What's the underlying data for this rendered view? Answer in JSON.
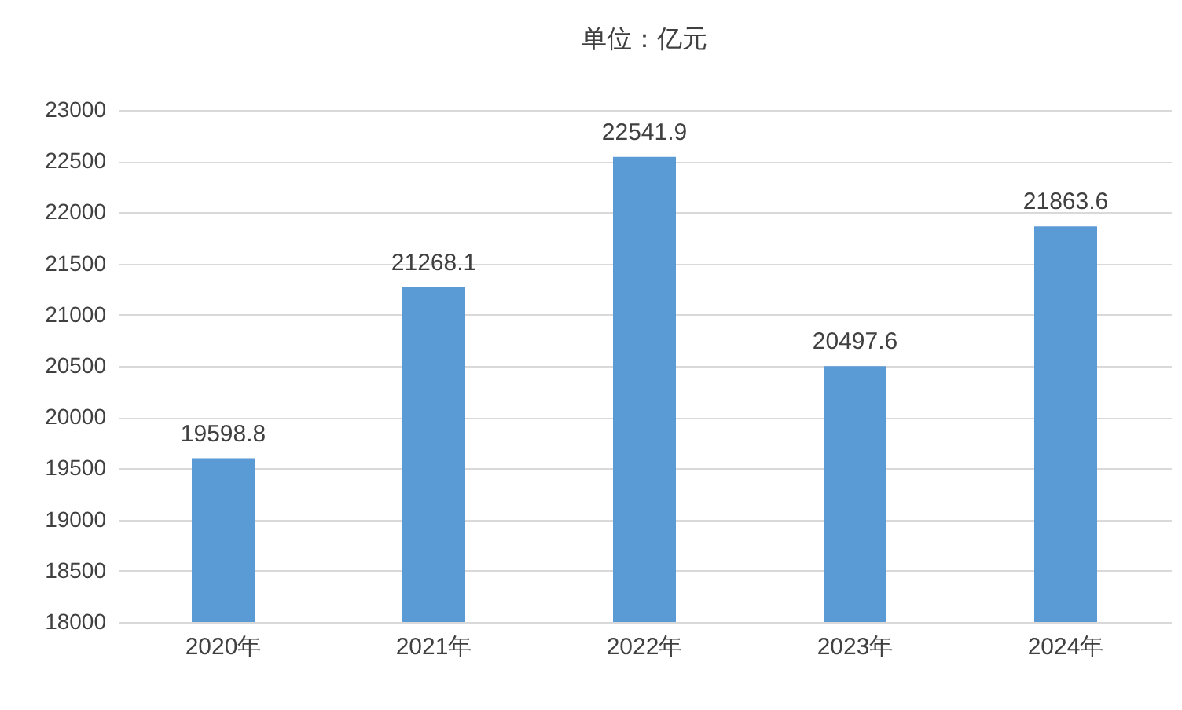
{
  "chart_data": {
    "type": "bar",
    "title": "单位：亿元",
    "categories": [
      "2020年",
      "2021年",
      "2022年",
      "2023年",
      "2024年"
    ],
    "values": [
      19598.8,
      21268.1,
      22541.9,
      20497.6,
      21863.6
    ],
    "color": "#5b9bd5",
    "ylim": [
      18000,
      23000
    ],
    "yticks": [
      18000,
      18500,
      19000,
      19500,
      20000,
      20500,
      21000,
      21500,
      22000,
      22500,
      23000
    ],
    "grid": "y",
    "data_labels": true
  }
}
